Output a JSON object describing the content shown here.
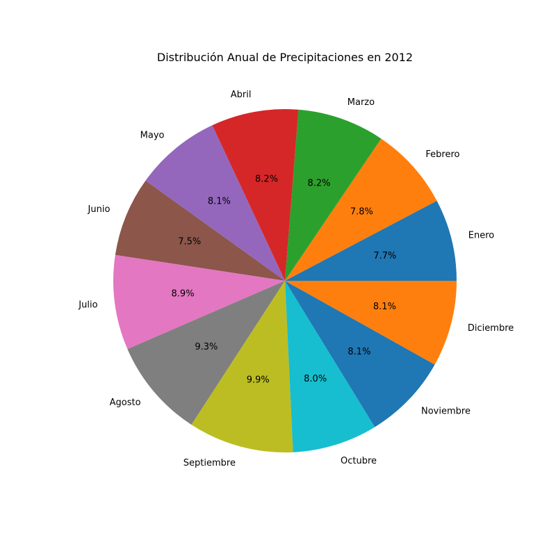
{
  "chart_data": {
    "type": "pie",
    "title": "Distribución Anual de Precipitaciones en 2012",
    "categories": [
      "Enero",
      "Febrero",
      "Marzo",
      "Abril",
      "Mayo",
      "Junio",
      "Julio",
      "Agosto",
      "Septiembre",
      "Octubre",
      "Noviembre",
      "Diciembre"
    ],
    "values": [
      7.7,
      7.8,
      8.2,
      8.2,
      8.1,
      7.5,
      8.9,
      9.3,
      9.9,
      8.0,
      8.1,
      8.1
    ],
    "percent_labels": [
      "7.7%",
      "7.8%",
      "8.2%",
      "8.2%",
      "8.1%",
      "7.5%",
      "8.9%",
      "9.3%",
      "9.9%",
      "8.0%",
      "8.1%",
      "8.1%"
    ],
    "colors": [
      "#1f77b4",
      "#ff7f0e",
      "#2ca02c",
      "#d62728",
      "#9467bd",
      "#8c564b",
      "#e377c2",
      "#7f7f7f",
      "#bcbd22",
      "#17becf",
      "#1f77b4",
      "#ff7f0e"
    ],
    "start_angle_deg": 0,
    "direction": "counterclockwise",
    "legend": "none"
  }
}
